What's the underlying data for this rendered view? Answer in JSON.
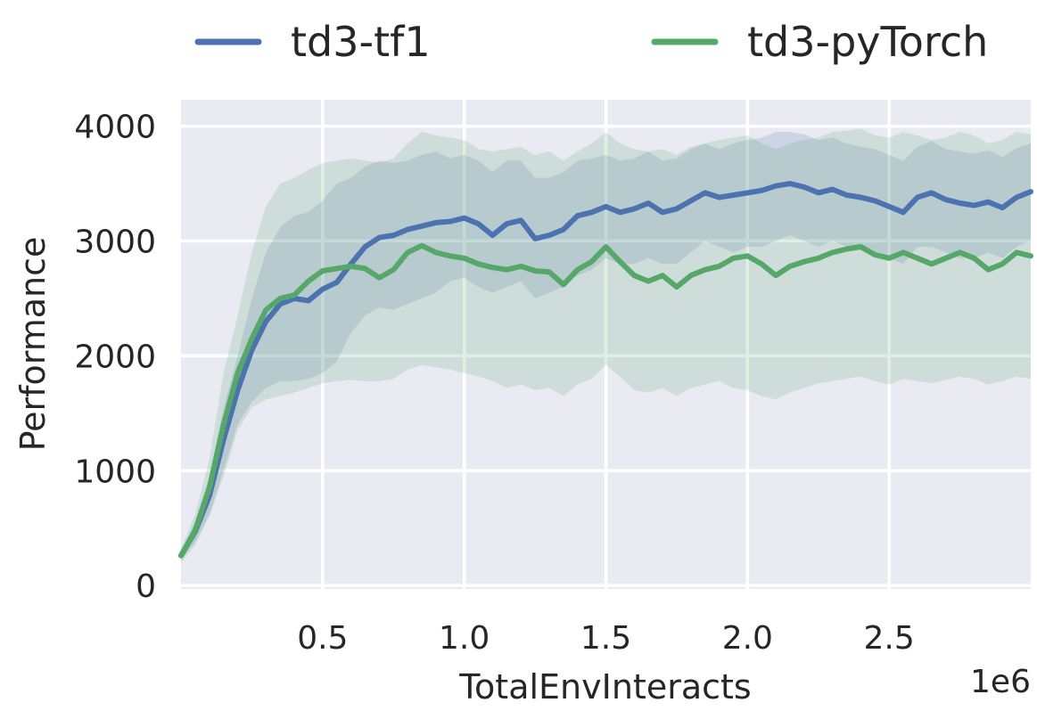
{
  "chart_data": {
    "type": "line",
    "xlabel": "TotalEnvInteracts",
    "ylabel": "Performance",
    "x_offset_label": "1e6",
    "xlim": [
      0.0,
      3.0
    ],
    "ylim": [
      -30,
      4230
    ],
    "x_ticks": [
      0.5,
      1.0,
      1.5,
      2.0,
      2.5
    ],
    "x_tick_labels": [
      "0.5",
      "1.0",
      "1.5",
      "2.0",
      "2.5"
    ],
    "y_ticks": [
      0,
      1000,
      2000,
      3000,
      4000
    ],
    "y_tick_labels": [
      "0",
      "1000",
      "2000",
      "3000",
      "4000"
    ],
    "grid": true,
    "legend_position": "top",
    "series": [
      {
        "name": "td3-tf1",
        "color": "#4c72b0",
        "x": [
          0.0,
          0.05,
          0.1,
          0.15,
          0.2,
          0.25,
          0.3,
          0.35,
          0.4,
          0.45,
          0.5,
          0.55,
          0.6,
          0.65,
          0.7,
          0.75,
          0.8,
          0.85,
          0.9,
          0.95,
          1.0,
          1.05,
          1.1,
          1.15,
          1.2,
          1.25,
          1.3,
          1.35,
          1.4,
          1.45,
          1.5,
          1.55,
          1.6,
          1.65,
          1.7,
          1.75,
          1.8,
          1.85,
          1.9,
          1.95,
          2.0,
          2.05,
          2.1,
          2.15,
          2.2,
          2.25,
          2.3,
          2.35,
          2.4,
          2.45,
          2.5,
          2.55,
          2.6,
          2.65,
          2.7,
          2.75,
          2.8,
          2.85,
          2.9,
          2.95,
          3.0
        ],
        "y": [
          260,
          470,
          780,
          1270,
          1700,
          2050,
          2300,
          2450,
          2500,
          2480,
          2580,
          2640,
          2800,
          2950,
          3030,
          3050,
          3100,
          3130,
          3160,
          3170,
          3200,
          3150,
          3050,
          3150,
          3180,
          3020,
          3050,
          3100,
          3220,
          3250,
          3300,
          3250,
          3280,
          3330,
          3250,
          3280,
          3350,
          3420,
          3380,
          3400,
          3420,
          3440,
          3480,
          3500,
          3470,
          3420,
          3450,
          3400,
          3380,
          3350,
          3300,
          3250,
          3380,
          3420,
          3360,
          3330,
          3310,
          3340,
          3290,
          3380,
          3430
        ],
        "lower": [
          220,
          380,
          620,
          1000,
          1400,
          1600,
          1720,
          1780,
          1780,
          1800,
          1850,
          1950,
          2200,
          2350,
          2420,
          2400,
          2450,
          2500,
          2550,
          2650,
          2680,
          2600,
          2550,
          2600,
          2650,
          2500,
          2550,
          2600,
          2700,
          2750,
          2850,
          2800,
          2800,
          2850,
          2800,
          2800,
          2900,
          3000,
          2950,
          2900,
          2950,
          2950,
          3000,
          3050,
          3000,
          2950,
          3000,
          2950,
          2950,
          2900,
          2850,
          2800,
          2950,
          2950,
          2900,
          2850,
          2850,
          2900,
          2850,
          2950,
          3000
        ],
        "upper": [
          300,
          560,
          950,
          1550,
          2000,
          2500,
          2900,
          3120,
          3220,
          3250,
          3350,
          3500,
          3550,
          3650,
          3700,
          3680,
          3700,
          3750,
          3780,
          3720,
          3750,
          3700,
          3600,
          3700,
          3700,
          3550,
          3550,
          3600,
          3700,
          3720,
          3750,
          3700,
          3720,
          3780,
          3700,
          3720,
          3800,
          3850,
          3800,
          3850,
          3880,
          3900,
          3950,
          3950,
          3930,
          3880,
          3900,
          3850,
          3820,
          3800,
          3750,
          3700,
          3820,
          3870,
          3800,
          3780,
          3760,
          3790,
          3730,
          3810,
          3850
        ]
      },
      {
        "name": "td3-pyTorch",
        "color": "#55a868",
        "x": [
          0.0,
          0.05,
          0.1,
          0.15,
          0.2,
          0.25,
          0.3,
          0.35,
          0.4,
          0.45,
          0.5,
          0.55,
          0.6,
          0.65,
          0.7,
          0.75,
          0.8,
          0.85,
          0.9,
          0.95,
          1.0,
          1.05,
          1.1,
          1.15,
          1.2,
          1.25,
          1.3,
          1.35,
          1.4,
          1.45,
          1.5,
          1.55,
          1.6,
          1.65,
          1.7,
          1.75,
          1.8,
          1.85,
          1.9,
          1.95,
          2.0,
          2.05,
          2.1,
          2.15,
          2.2,
          2.25,
          2.3,
          2.35,
          2.4,
          2.45,
          2.5,
          2.55,
          2.6,
          2.65,
          2.7,
          2.75,
          2.8,
          2.85,
          2.9,
          2.95,
          3.0
        ],
        "y": [
          260,
          480,
          850,
          1400,
          1850,
          2150,
          2400,
          2500,
          2530,
          2650,
          2740,
          2760,
          2780,
          2760,
          2680,
          2750,
          2900,
          2960,
          2900,
          2870,
          2850,
          2800,
          2770,
          2750,
          2780,
          2740,
          2730,
          2620,
          2750,
          2820,
          2950,
          2820,
          2700,
          2650,
          2700,
          2600,
          2700,
          2750,
          2780,
          2850,
          2870,
          2800,
          2700,
          2780,
          2820,
          2850,
          2900,
          2930,
          2950,
          2880,
          2850,
          2900,
          2850,
          2800,
          2850,
          2900,
          2850,
          2750,
          2800,
          2900,
          2870
        ],
        "lower": [
          200,
          350,
          600,
          950,
          1350,
          1550,
          1620,
          1650,
          1680,
          1720,
          1760,
          1780,
          1790,
          1780,
          1780,
          1800,
          1880,
          1920,
          1900,
          1880,
          1850,
          1820,
          1780,
          1720,
          1750,
          1700,
          1720,
          1650,
          1750,
          1800,
          1920,
          1820,
          1700,
          1680,
          1720,
          1650,
          1720,
          1750,
          1780,
          1720,
          1700,
          1650,
          1620,
          1680,
          1720,
          1760,
          1780,
          1800,
          1820,
          1780,
          1750,
          1800,
          1780,
          1760,
          1790,
          1820,
          1800,
          1750,
          1780,
          1820,
          1800
        ],
        "upper": [
          320,
          620,
          1100,
          1850,
          2350,
          2900,
          3300,
          3500,
          3550,
          3620,
          3680,
          3700,
          3720,
          3700,
          3680,
          3720,
          3850,
          3950,
          3920,
          3900,
          3880,
          3800,
          3780,
          3800,
          3820,
          3750,
          3780,
          3700,
          3780,
          3850,
          3950,
          3850,
          3800,
          3780,
          3800,
          3750,
          3820,
          3850,
          3880,
          3900,
          3920,
          3850,
          3800,
          3850,
          3880,
          3900,
          3950,
          3960,
          3980,
          3920,
          3900,
          3950,
          3920,
          3880,
          3900,
          3950,
          3920,
          3850,
          3880,
          3950,
          3930
        ]
      }
    ]
  }
}
